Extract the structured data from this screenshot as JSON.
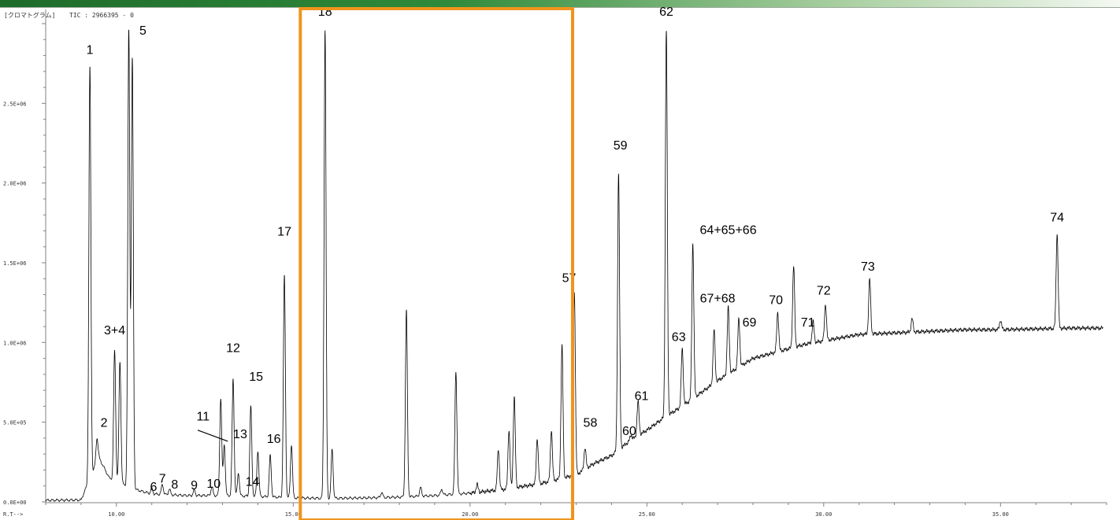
{
  "header": {
    "mode_label": "[クロマトグラム]",
    "tic_label": "TIC : 2966395 - 0"
  },
  "colors": {
    "trace": "#000000",
    "highlight": "#f0941e",
    "axis": "#808080",
    "banner": "#2f8a3a"
  },
  "chart_data": {
    "type": "line",
    "x_axis_label": "R.T-->",
    "xlim": [
      8.0,
      38.0
    ],
    "ylim": [
      0,
      3000000
    ],
    "xticks": [
      {
        "value": 10,
        "label": "10.00"
      },
      {
        "value": 15,
        "label": "15.00"
      },
      {
        "value": 20,
        "label": "20.00"
      },
      {
        "value": 25,
        "label": "25.00"
      },
      {
        "value": 30,
        "label": "30.00"
      },
      {
        "value": 35,
        "label": "35.00"
      }
    ],
    "yticks": [
      {
        "value": 0,
        "label": "0.0E+00"
      },
      {
        "value": 500000,
        "label": "5.0E+05"
      },
      {
        "value": 1000000,
        "label": "1.0E+06"
      },
      {
        "value": 1500000,
        "label": "1.5E+06"
      },
      {
        "value": 2000000,
        "label": "2.0E+06"
      },
      {
        "value": 2500000,
        "label": "2.5E+06"
      }
    ],
    "highlight_region": [
      15.2,
      22.9
    ],
    "baseline": [
      [
        8.0,
        10000
      ],
      [
        9.0,
        12000
      ],
      [
        9.5,
        280000
      ],
      [
        9.8,
        150000
      ],
      [
        10.5,
        80000
      ],
      [
        11.0,
        50000
      ],
      [
        12.0,
        40000
      ],
      [
        13.0,
        40000
      ],
      [
        14.0,
        35000
      ],
      [
        15.0,
        25000
      ],
      [
        16.0,
        22000
      ],
      [
        17.0,
        25000
      ],
      [
        18.0,
        30000
      ],
      [
        19.0,
        40000
      ],
      [
        20.0,
        55000
      ],
      [
        21.0,
        80000
      ],
      [
        22.0,
        115000
      ],
      [
        23.0,
        170000
      ],
      [
        23.5,
        240000
      ],
      [
        24.0,
        290000
      ],
      [
        24.5,
        380000
      ],
      [
        25.0,
        450000
      ],
      [
        25.5,
        530000
      ],
      [
        26.0,
        600000
      ],
      [
        26.5,
        680000
      ],
      [
        27.0,
        760000
      ],
      [
        27.5,
        830000
      ],
      [
        28.0,
        900000
      ],
      [
        28.5,
        930000
      ],
      [
        29.0,
        960000
      ],
      [
        29.5,
        990000
      ],
      [
        30.0,
        1010000
      ],
      [
        30.5,
        1030000
      ],
      [
        31.0,
        1050000
      ],
      [
        32.0,
        1060000
      ],
      [
        33.0,
        1070000
      ],
      [
        34.0,
        1080000
      ],
      [
        35.0,
        1080000
      ],
      [
        36.0,
        1085000
      ],
      [
        37.0,
        1090000
      ],
      [
        37.9,
        1090000
      ]
    ],
    "peaks": [
      {
        "x": 9.25,
        "y": 2730000
      },
      {
        "x": 9.45,
        "y": 400000
      },
      {
        "x": 9.95,
        "y": 950000
      },
      {
        "x": 10.1,
        "y": 880000
      },
      {
        "x": 10.35,
        "y": 2960000
      },
      {
        "x": 10.45,
        "y": 2780000
      },
      {
        "x": 11.0,
        "y": 85000
      },
      {
        "x": 11.3,
        "y": 110000
      },
      {
        "x": 11.5,
        "y": 80000
      },
      {
        "x": 12.2,
        "y": 75000
      },
      {
        "x": 12.7,
        "y": 95000
      },
      {
        "x": 12.95,
        "y": 650000
      },
      {
        "x": 13.05,
        "y": 360000
      },
      {
        "x": 13.3,
        "y": 770000
      },
      {
        "x": 13.45,
        "y": 180000
      },
      {
        "x": 13.8,
        "y": 600000
      },
      {
        "x": 14.0,
        "y": 320000
      },
      {
        "x": 14.35,
        "y": 290000
      },
      {
        "x": 14.75,
        "y": 1420000
      },
      {
        "x": 14.95,
        "y": 360000
      },
      {
        "x": 15.9,
        "y": 2960000
      },
      {
        "x": 16.1,
        "y": 330000
      },
      {
        "x": 17.5,
        "y": 60000
      },
      {
        "x": 18.2,
        "y": 1200000
      },
      {
        "x": 18.6,
        "y": 90000
      },
      {
        "x": 19.2,
        "y": 80000
      },
      {
        "x": 19.6,
        "y": 820000
      },
      {
        "x": 20.2,
        "y": 110000
      },
      {
        "x": 20.8,
        "y": 330000
      },
      {
        "x": 21.1,
        "y": 450000
      },
      {
        "x": 21.25,
        "y": 660000
      },
      {
        "x": 21.9,
        "y": 400000
      },
      {
        "x": 22.3,
        "y": 450000
      },
      {
        "x": 22.6,
        "y": 980000
      },
      {
        "x": 22.95,
        "y": 1320000
      },
      {
        "x": 23.25,
        "y": 340000
      },
      {
        "x": 24.2,
        "y": 2060000
      },
      {
        "x": 24.55,
        "y": 420000
      },
      {
        "x": 24.75,
        "y": 630000
      },
      {
        "x": 25.55,
        "y": 2960000
      },
      {
        "x": 26.0,
        "y": 960000
      },
      {
        "x": 26.3,
        "y": 1620000
      },
      {
        "x": 26.9,
        "y": 1080000
      },
      {
        "x": 27.3,
        "y": 1220000
      },
      {
        "x": 27.6,
        "y": 1150000
      },
      {
        "x": 28.7,
        "y": 1190000
      },
      {
        "x": 29.15,
        "y": 1480000
      },
      {
        "x": 29.7,
        "y": 1130000
      },
      {
        "x": 30.05,
        "y": 1240000
      },
      {
        "x": 31.3,
        "y": 1400000
      },
      {
        "x": 32.5,
        "y": 1150000
      },
      {
        "x": 35.0,
        "y": 1140000
      },
      {
        "x": 36.6,
        "y": 1680000
      }
    ],
    "peak_labels": [
      {
        "text": "1",
        "x": 9.25,
        "y": 2810000
      },
      {
        "text": "2",
        "x": 9.65,
        "y": 470000
      },
      {
        "text": "3+4",
        "x": 9.95,
        "y": 1050000
      },
      {
        "text": "5",
        "x": 10.75,
        "y": 2930000
      },
      {
        "text": "6",
        "x": 11.05,
        "y": 70000
      },
      {
        "text": "7",
        "x": 11.3,
        "y": 120000
      },
      {
        "text": "8",
        "x": 11.65,
        "y": 85000
      },
      {
        "text": "9",
        "x": 12.2,
        "y": 80000
      },
      {
        "text": "10",
        "x": 12.75,
        "y": 90000
      },
      {
        "text": "11",
        "x": 12.45,
        "y": 510000
      },
      {
        "text": "12",
        "x": 13.3,
        "y": 940000
      },
      {
        "text": "13",
        "x": 13.5,
        "y": 400000
      },
      {
        "text": "14",
        "x": 13.85,
        "y": 100000
      },
      {
        "text": "15",
        "x": 13.95,
        "y": 760000
      },
      {
        "text": "16",
        "x": 14.45,
        "y": 370000
      },
      {
        "text": "17",
        "x": 14.75,
        "y": 1670000
      },
      {
        "text": "18",
        "x": 15.9,
        "y": 3050000
      },
      {
        "text": "57",
        "x": 22.8,
        "y": 1380000
      },
      {
        "text": "58",
        "x": 23.4,
        "y": 470000
      },
      {
        "text": "59",
        "x": 24.25,
        "y": 2210000
      },
      {
        "text": "60",
        "x": 24.5,
        "y": 420000
      },
      {
        "text": "61",
        "x": 24.85,
        "y": 640000
      },
      {
        "text": "62",
        "x": 25.55,
        "y": 3050000
      },
      {
        "text": "63",
        "x": 25.9,
        "y": 1010000
      },
      {
        "text": "64+65+66",
        "x": 27.3,
        "y": 1680000
      },
      {
        "text": "67+68",
        "x": 27.0,
        "y": 1250000
      },
      {
        "text": "69",
        "x": 27.9,
        "y": 1100000
      },
      {
        "text": "70",
        "x": 28.65,
        "y": 1240000
      },
      {
        "text": "71",
        "x": 29.55,
        "y": 1100000
      },
      {
        "text": "72",
        "x": 30.0,
        "y": 1300000
      },
      {
        "text": "73",
        "x": 31.25,
        "y": 1450000
      },
      {
        "text": "74",
        "x": 36.6,
        "y": 1760000
      }
    ],
    "callouts": [
      {
        "from": [
          12.3,
          450000
        ],
        "to": [
          13.15,
          380000
        ]
      }
    ]
  }
}
